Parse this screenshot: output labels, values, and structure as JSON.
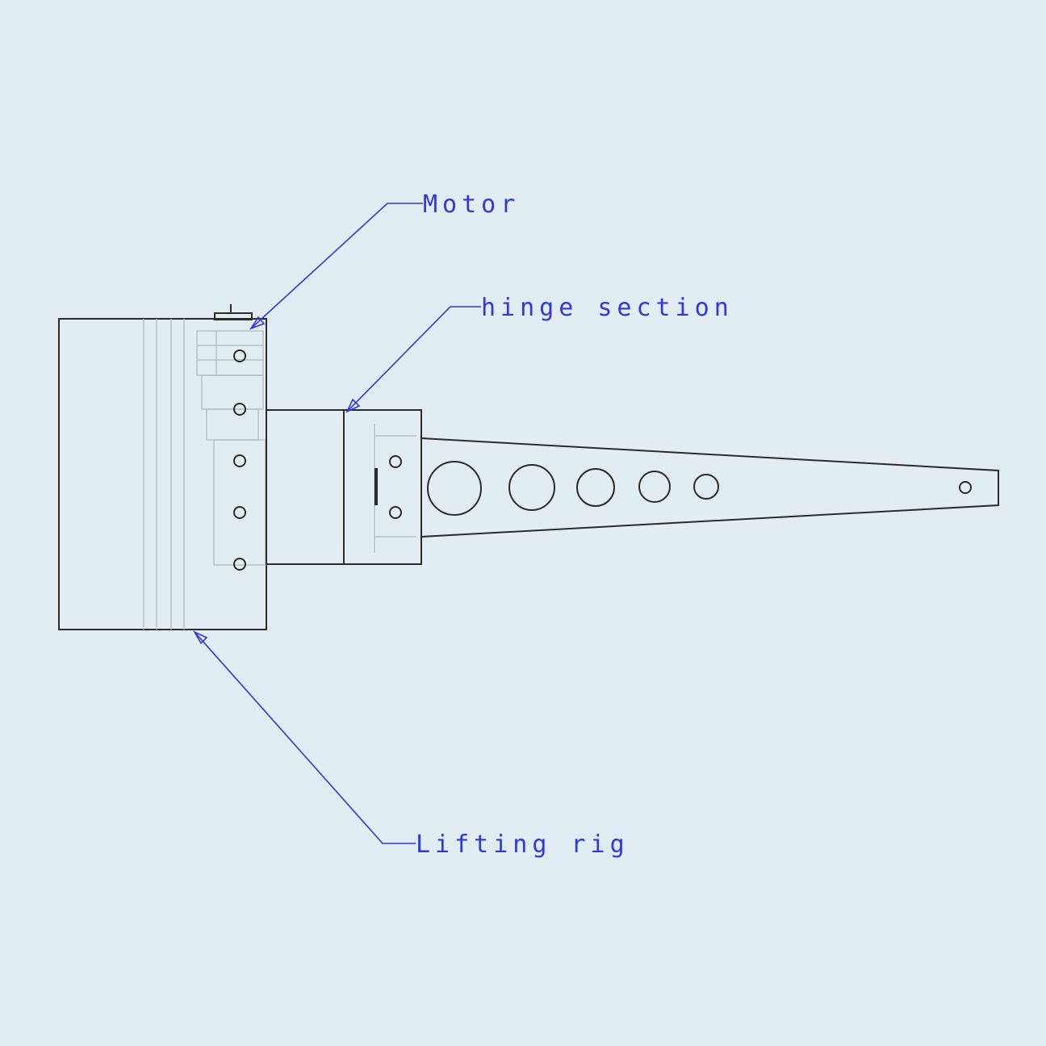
{
  "labels": {
    "motor": "Motor",
    "hinge": "hinge section",
    "lifting_rig": "Lifting rig"
  },
  "colors": {
    "background": "#e1edf2",
    "outline": "#2a2a2a",
    "hidden_lines": "#b9c1c6",
    "annotation": "#2f37e0"
  }
}
